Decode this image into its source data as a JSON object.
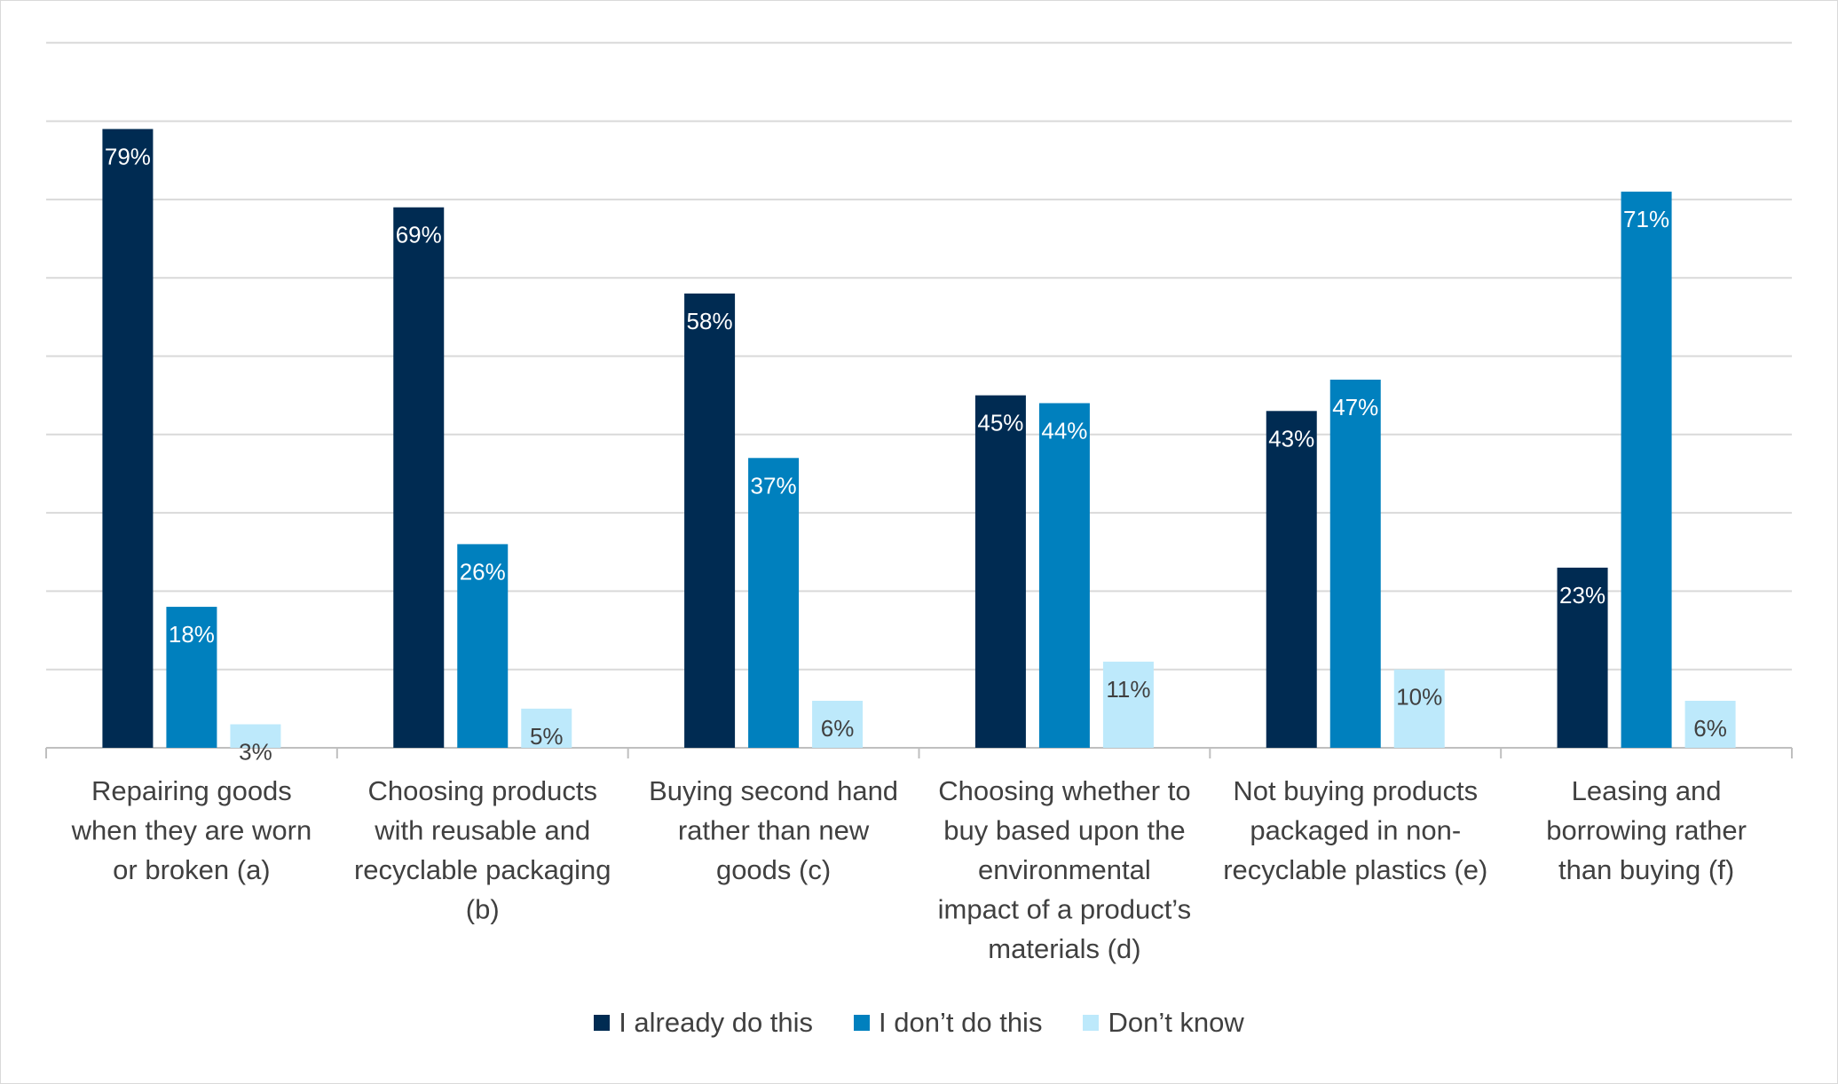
{
  "chart_data": {
    "type": "bar",
    "title": "",
    "xlabel": "",
    "ylabel": "",
    "ylim": [
      0,
      90
    ],
    "grid": true,
    "legend_position": "bottom",
    "categories": [
      [
        "Repairing goods",
        "when they are worn",
        "or broken (a)"
      ],
      [
        "Choosing products",
        "with reusable and",
        "recyclable packaging",
        "(b)"
      ],
      [
        "Buying second hand",
        "rather than new",
        "goods (c)"
      ],
      [
        "Choosing whether to",
        "buy based upon the",
        "environmental",
        "impact of a product’s",
        "materials (d)"
      ],
      [
        "Not buying products",
        "packaged in non-",
        "recyclable plastics (e)"
      ],
      [
        "Leasing and",
        "borrowing rather",
        "than buying (f)"
      ]
    ],
    "series": [
      {
        "name": "I already do this",
        "color": "#002b52",
        "label_color": "#ffffff",
        "values": [
          79,
          69,
          58,
          45,
          43,
          23
        ],
        "labels": [
          "79%",
          "69%",
          "58%",
          "45%",
          "43%",
          "23%"
        ]
      },
      {
        "name": "I don’t do this",
        "color": "#0080be",
        "label_color": "#ffffff",
        "values": [
          18,
          26,
          37,
          44,
          47,
          71
        ],
        "labels": [
          "18%",
          "26%",
          "37%",
          "44%",
          "47%",
          "71%"
        ]
      },
      {
        "name": "Don’t know",
        "color": "#bde9fb",
        "label_color": "#404040",
        "values": [
          3,
          5,
          6,
          11,
          10,
          6
        ],
        "labels": [
          "3%",
          "5%",
          "6%",
          "11%",
          "10%",
          "6%"
        ]
      }
    ],
    "gridline_color": "#d9d9d9",
    "axis_color": "#bfbfbf"
  }
}
